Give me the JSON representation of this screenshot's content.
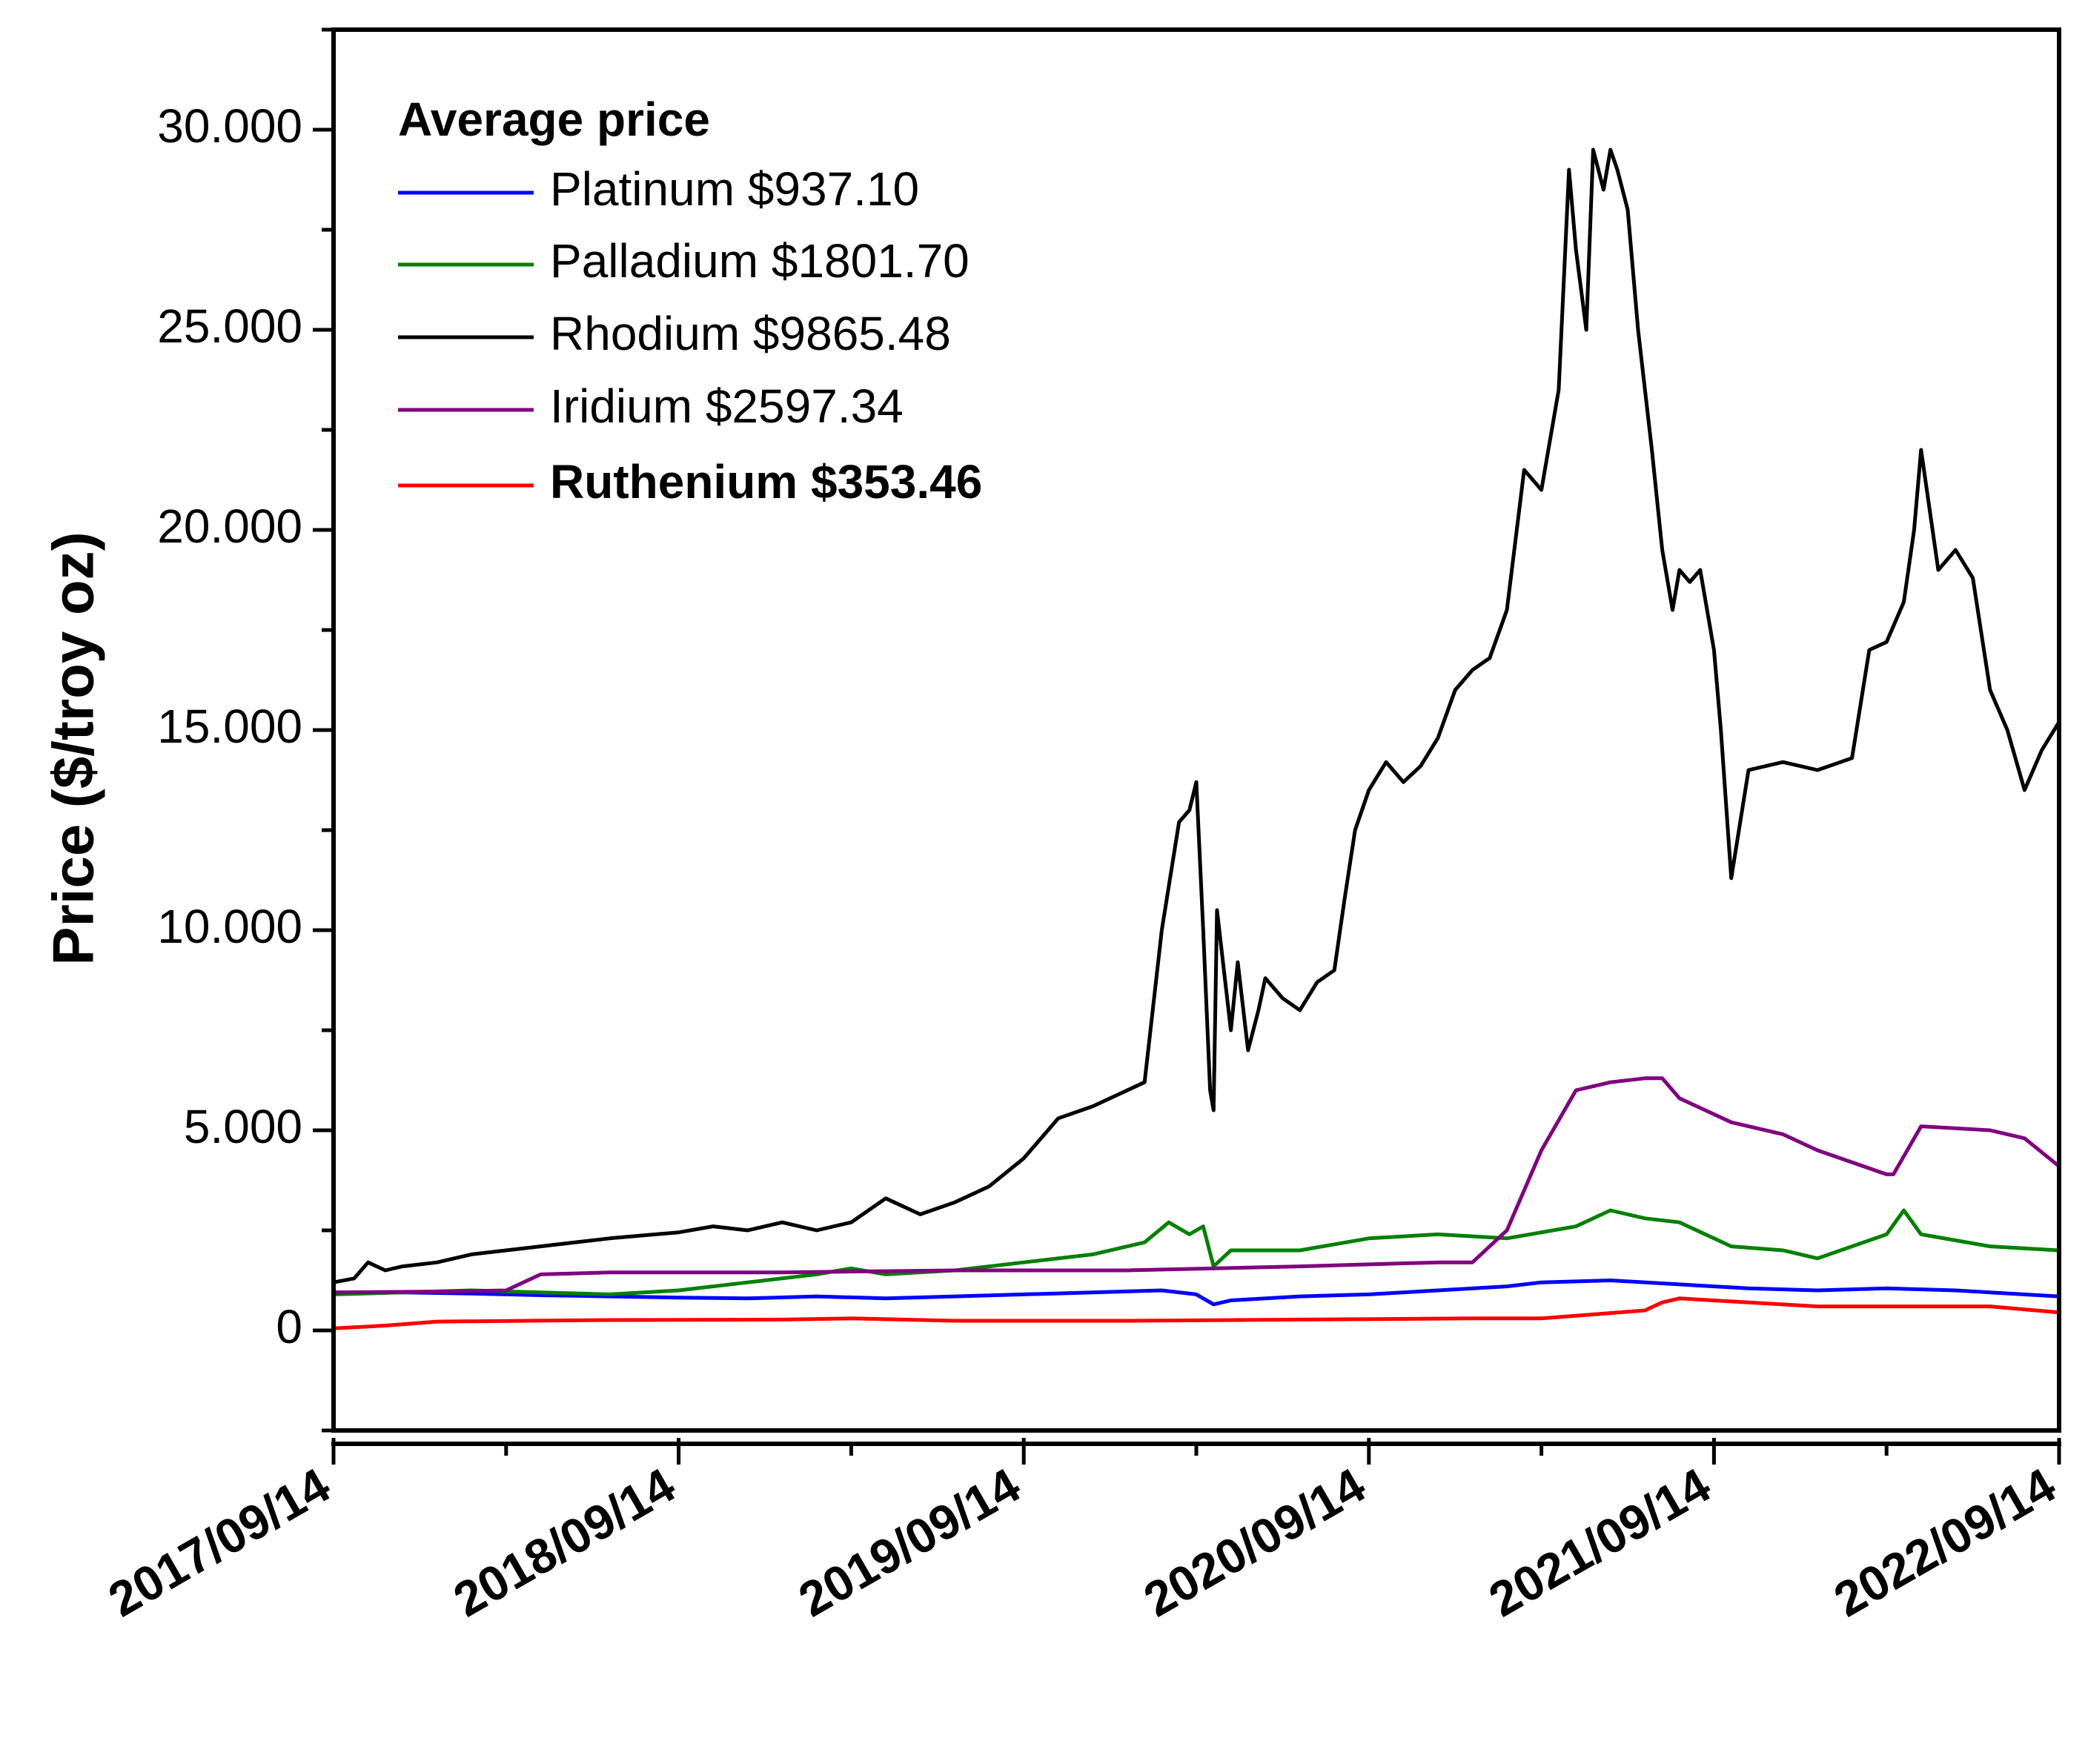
{
  "chart_data": {
    "type": "line",
    "title": "",
    "xlabel": "",
    "ylabel": "Price ($/troy oz)",
    "ylim": [
      -2500,
      32500
    ],
    "yticks": [
      0,
      5000,
      10000,
      15000,
      20000,
      25000,
      30000
    ],
    "ytick_labels": [
      "0",
      "5.000",
      "10.000",
      "15.000",
      "20.000",
      "25.000",
      "30.000"
    ],
    "xlim": [
      2017.7,
      2022.7
    ],
    "xticks": [
      2017.7,
      2018.7,
      2019.7,
      2020.7,
      2021.7,
      2022.7
    ],
    "xtick_labels": [
      "2017/09/14",
      "2018/09/14",
      "2019/09/14",
      "2020/09/14",
      "2021/09/14",
      "2022/09/14"
    ],
    "legend": {
      "title": "Average price",
      "placement": "top-left"
    },
    "series": [
      {
        "name": "Platinum $937.10",
        "color": "#0000ff",
        "bold": false,
        "x": [
          2017.7,
          2017.9,
          2018.1,
          2018.3,
          2018.5,
          2018.7,
          2018.9,
          2019.1,
          2019.3,
          2019.5,
          2019.7,
          2019.9,
          2020.1,
          2020.2,
          2020.25,
          2020.3,
          2020.5,
          2020.7,
          2020.9,
          2021.1,
          2021.2,
          2021.4,
          2021.6,
          2021.8,
          2022.0,
          2022.2,
          2022.4,
          2022.5,
          2022.7
        ],
        "y": [
          950,
          950,
          920,
          880,
          850,
          820,
          800,
          850,
          800,
          850,
          900,
          950,
          1000,
          900,
          650,
          750,
          850,
          900,
          1000,
          1100,
          1200,
          1250,
          1150,
          1050,
          1000,
          1050,
          1000,
          950,
          850
        ]
      },
      {
        "name": "Palladium $1801.70",
        "color": "#008000",
        "bold": false,
        "x": [
          2017.7,
          2017.9,
          2018.1,
          2018.3,
          2018.5,
          2018.7,
          2018.9,
          2019.1,
          2019.2,
          2019.3,
          2019.5,
          2019.7,
          2019.9,
          2020.05,
          2020.12,
          2020.18,
          2020.22,
          2020.25,
          2020.3,
          2020.5,
          2020.7,
          2020.9,
          2021.1,
          2021.3,
          2021.4,
          2021.5,
          2021.6,
          2021.75,
          2021.9,
          2022.0,
          2022.1,
          2022.2,
          2022.25,
          2022.3,
          2022.5,
          2022.7
        ],
        "y": [
          900,
          950,
          1000,
          950,
          900,
          1000,
          1200,
          1400,
          1550,
          1400,
          1500,
          1700,
          1900,
          2200,
          2700,
          2400,
          2600,
          1600,
          2000,
          2000,
          2300,
          2400,
          2300,
          2600,
          3000,
          2800,
          2700,
          2100,
          2000,
          1800,
          2100,
          2400,
          3000,
          2400,
          2100,
          2000
        ]
      },
      {
        "name": "Rhodium $9865.48",
        "color": "#000000",
        "bold": false,
        "x": [
          2017.7,
          2017.76,
          2017.8,
          2017.85,
          2017.9,
          2018.0,
          2018.1,
          2018.3,
          2018.5,
          2018.7,
          2018.8,
          2018.9,
          2019.0,
          2019.1,
          2019.2,
          2019.3,
          2019.4,
          2019.5,
          2019.6,
          2019.7,
          2019.8,
          2019.9,
          2020.0,
          2020.05,
          2020.1,
          2020.15,
          2020.18,
          2020.2,
          2020.22,
          2020.24,
          2020.25,
          2020.26,
          2020.28,
          2020.3,
          2020.32,
          2020.35,
          2020.38,
          2020.4,
          2020.45,
          2020.5,
          2020.55,
          2020.6,
          2020.63,
          2020.66,
          2020.7,
          2020.75,
          2020.8,
          2020.85,
          2020.9,
          2020.95,
          2021.0,
          2021.05,
          2021.1,
          2021.15,
          2021.2,
          2021.22,
          2021.25,
          2021.28,
          2021.3,
          2021.33,
          2021.35,
          2021.38,
          2021.4,
          2021.42,
          2021.45,
          2021.48,
          2021.52,
          2021.55,
          2021.58,
          2021.6,
          2021.63,
          2021.66,
          2021.7,
          2021.72,
          2021.75,
          2021.8,
          2021.9,
          2022.0,
          2022.1,
          2022.15,
          2022.2,
          2022.25,
          2022.28,
          2022.3,
          2022.35,
          2022.4,
          2022.45,
          2022.5,
          2022.55,
          2022.6,
          2022.65,
          2022.7
        ],
        "y": [
          1200,
          1300,
          1700,
          1500,
          1600,
          1700,
          1900,
          2100,
          2300,
          2450,
          2600,
          2500,
          2700,
          2500,
          2700,
          3300,
          2900,
          3200,
          3600,
          4300,
          5300,
          5600,
          6000,
          6200,
          10000,
          12700,
          13000,
          13700,
          10000,
          6000,
          5500,
          10500,
          9000,
          7500,
          9200,
          7000,
          8000,
          8800,
          8300,
          8000,
          8700,
          9000,
          10800,
          12500,
          13500,
          14200,
          13700,
          14100,
          14800,
          16000,
          16500,
          16800,
          18000,
          21500,
          21000,
          22000,
          23500,
          29000,
          27000,
          25000,
          29500,
          28500,
          29500,
          29000,
          28000,
          25000,
          22000,
          19500,
          18000,
          19000,
          18700,
          19000,
          17000,
          15000,
          11300,
          14000,
          14200,
          14000,
          14300,
          17000,
          17200,
          18200,
          20000,
          22000,
          19000,
          19500,
          18800,
          16000,
          15000,
          13500,
          14500,
          15200
        ]
      },
      {
        "name": "Iridium $2597.34",
        "color": "#800080",
        "bold": false,
        "x": [
          2017.7,
          2018.0,
          2018.2,
          2018.3,
          2018.5,
          2019.0,
          2019.5,
          2020.0,
          2020.5,
          2020.9,
          2021.0,
          2021.1,
          2021.15,
          2021.2,
          2021.3,
          2021.4,
          2021.5,
          2021.55,
          2021.6,
          2021.75,
          2021.9,
          2022.0,
          2022.2,
          2022.22,
          2022.3,
          2022.5,
          2022.6,
          2022.7
        ],
        "y": [
          950,
          970,
          1000,
          1400,
          1450,
          1450,
          1500,
          1500,
          1600,
          1700,
          1700,
          2500,
          3500,
          4500,
          6000,
          6200,
          6300,
          6300,
          5800,
          5200,
          4900,
          4500,
          3900,
          3900,
          5100,
          5000,
          4800,
          4100
        ]
      },
      {
        "name": "Ruthenium $353.46",
        "color": "#ff0000",
        "bold": true,
        "x": [
          2017.7,
          2017.85,
          2018.0,
          2018.5,
          2019.0,
          2019.2,
          2019.5,
          2020.0,
          2020.5,
          2021.0,
          2021.2,
          2021.5,
          2021.55,
          2021.6,
          2021.8,
          2022.0,
          2022.5,
          2022.7
        ],
        "y": [
          50,
          120,
          220,
          260,
          270,
          300,
          240,
          240,
          270,
          300,
          300,
          500,
          700,
          800,
          700,
          600,
          600,
          450
        ]
      }
    ]
  }
}
